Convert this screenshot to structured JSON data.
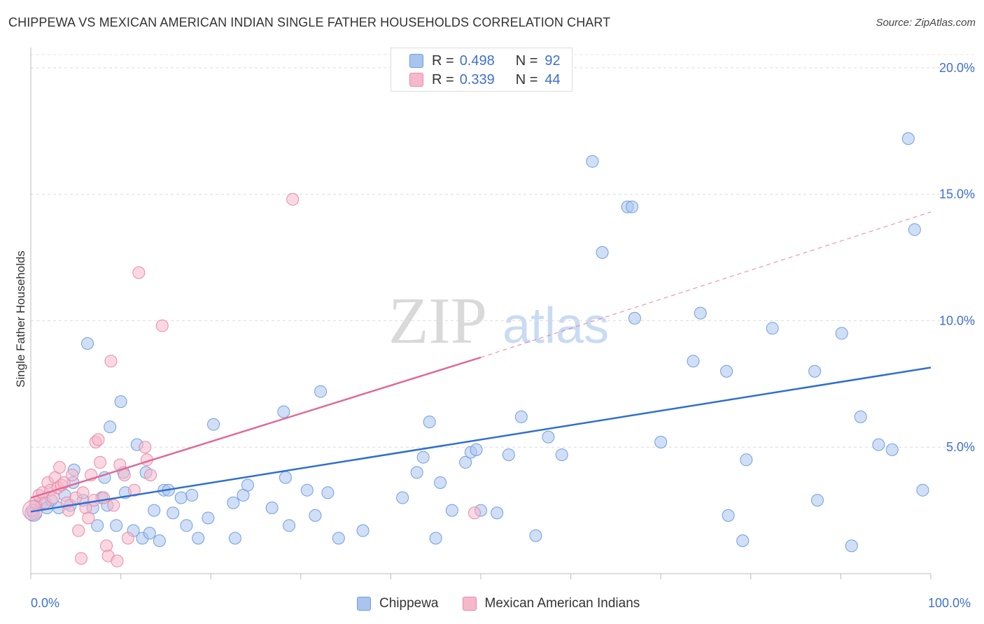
{
  "title": "CHIPPEWA VS MEXICAN AMERICAN INDIAN SINGLE FATHER HOUSEHOLDS CORRELATION CHART",
  "source": "Source: ZipAtlas.com",
  "watermark": {
    "zip": "ZIP",
    "atlas": "atlas"
  },
  "legend_top": [
    {
      "r_label": "R =",
      "r_value": "0.498",
      "n_label": "N =",
      "n_value": "92",
      "color": "#a9c4ef",
      "border": "#6f9ee0"
    },
    {
      "r_label": "R =",
      "r_value": "0.339",
      "n_label": "N =",
      "n_value": "44",
      "color": "#f6b8cb",
      "border": "#e98aa8"
    }
  ],
  "legend_bottom": [
    {
      "label": "Chippewa",
      "color": "#a9c4ef",
      "border": "#6f9ee0"
    },
    {
      "label": "Mexican American Indians",
      "color": "#f6b8cb",
      "border": "#e98aa8"
    }
  ],
  "chart_data": {
    "type": "scatter",
    "title": "CHIPPEWA VS MEXICAN AMERICAN INDIAN SINGLE FATHER HOUSEHOLDS CORRELATION CHART",
    "xlabel": "",
    "ylabel": "Single Father Households",
    "xlim": [
      0,
      100
    ],
    "ylim": [
      0,
      20.8
    ],
    "x_tick_labels": [
      {
        "value": 0,
        "label": "0.0%"
      },
      {
        "value": 100,
        "label": "100.0%"
      }
    ],
    "y_ticks": [
      {
        "value": 5,
        "label": "5.0%"
      },
      {
        "value": 10,
        "label": "10.0%"
      },
      {
        "value": 15,
        "label": "15.0%"
      },
      {
        "value": 20,
        "label": "20.0%"
      }
    ],
    "x_minor_ticks": [
      0,
      10,
      20,
      30,
      40,
      50,
      60,
      70,
      80,
      90,
      100
    ],
    "grid": "horizontal dashed",
    "series": [
      {
        "name": "Chippewa",
        "color": "#a9c4ef",
        "stroke": "#6f9ee0",
        "trend": {
          "x0": 0,
          "y0": 2.45,
          "x1": 100,
          "y1": 8.15,
          "color": "#2f6fd0"
        },
        "points": [
          [
            0.3,
            2.4
          ],
          [
            0.6,
            2.7
          ],
          [
            1.2,
            2.8
          ],
          [
            1.8,
            2.6
          ],
          [
            2.3,
            2.9
          ],
          [
            3.1,
            2.6
          ],
          [
            3.8,
            3.1
          ],
          [
            4.4,
            2.7
          ],
          [
            4.7,
            3.6
          ],
          [
            4.8,
            4.1
          ],
          [
            5.8,
            2.9
          ],
          [
            6.3,
            9.1
          ],
          [
            6.9,
            2.6
          ],
          [
            7.4,
            1.9
          ],
          [
            7.9,
            3.0
          ],
          [
            8.2,
            3.8
          ],
          [
            8.5,
            2.7
          ],
          [
            8.8,
            5.8
          ],
          [
            9.5,
            1.9
          ],
          [
            10.0,
            6.8
          ],
          [
            10.3,
            4.0
          ],
          [
            10.5,
            3.2
          ],
          [
            11.4,
            1.7
          ],
          [
            11.8,
            5.1
          ],
          [
            12.4,
            1.4
          ],
          [
            12.8,
            4.0
          ],
          [
            13.2,
            1.6
          ],
          [
            13.7,
            2.5
          ],
          [
            14.3,
            1.3
          ],
          [
            14.8,
            3.3
          ],
          [
            15.3,
            3.3
          ],
          [
            15.8,
            2.4
          ],
          [
            16.7,
            3.0
          ],
          [
            17.3,
            1.9
          ],
          [
            17.9,
            3.1
          ],
          [
            18.6,
            1.4
          ],
          [
            19.7,
            2.2
          ],
          [
            20.3,
            5.9
          ],
          [
            22.5,
            2.8
          ],
          [
            22.7,
            1.4
          ],
          [
            23.6,
            3.1
          ],
          [
            24.1,
            3.5
          ],
          [
            26.8,
            2.6
          ],
          [
            28.1,
            6.4
          ],
          [
            28.3,
            3.8
          ],
          [
            28.7,
            1.9
          ],
          [
            30.7,
            3.3
          ],
          [
            31.6,
            2.3
          ],
          [
            32.2,
            7.2
          ],
          [
            33.0,
            3.2
          ],
          [
            34.2,
            1.4
          ],
          [
            36.9,
            1.7
          ],
          [
            41.3,
            3.0
          ],
          [
            42.9,
            4.0
          ],
          [
            43.6,
            4.6
          ],
          [
            44.3,
            6.0
          ],
          [
            45.0,
            1.4
          ],
          [
            45.5,
            3.6
          ],
          [
            46.8,
            2.5
          ],
          [
            48.3,
            4.4
          ],
          [
            48.9,
            4.8
          ],
          [
            49.5,
            4.9
          ],
          [
            50.0,
            2.5
          ],
          [
            51.8,
            2.4
          ],
          [
            53.1,
            4.7
          ],
          [
            54.5,
            6.2
          ],
          [
            56.1,
            1.5
          ],
          [
            57.5,
            5.4
          ],
          [
            59.0,
            4.7
          ],
          [
            62.4,
            16.3
          ],
          [
            63.5,
            12.7
          ],
          [
            66.3,
            14.5
          ],
          [
            66.8,
            14.5
          ],
          [
            67.1,
            10.1
          ],
          [
            70.0,
            5.2
          ],
          [
            73.6,
            8.4
          ],
          [
            74.4,
            10.3
          ],
          [
            77.3,
            8.0
          ],
          [
            77.5,
            2.3
          ],
          [
            79.1,
            1.3
          ],
          [
            79.5,
            4.5
          ],
          [
            82.4,
            9.7
          ],
          [
            87.1,
            8.0
          ],
          [
            87.4,
            2.9
          ],
          [
            90.1,
            9.5
          ],
          [
            91.2,
            1.1
          ],
          [
            92.2,
            6.2
          ],
          [
            94.2,
            5.1
          ],
          [
            95.7,
            4.9
          ],
          [
            97.5,
            17.2
          ],
          [
            98.2,
            13.6
          ],
          [
            99.1,
            3.3
          ]
        ]
      },
      {
        "name": "Mexican American Indians",
        "color": "#f6b8cb",
        "stroke": "#e98aa8",
        "trend": {
          "x0": 0,
          "y0": 3.0,
          "x1": 50,
          "y1": 8.55,
          "dash_x1": 100,
          "dash_y1": 14.3,
          "color": "#e06a96"
        },
        "points": [
          [
            0.2,
            2.5
          ],
          [
            0.5,
            2.8
          ],
          [
            0.9,
            3.1
          ],
          [
            1.3,
            3.2
          ],
          [
            1.6,
            2.8
          ],
          [
            1.9,
            3.6
          ],
          [
            2.2,
            3.3
          ],
          [
            2.5,
            3.0
          ],
          [
            2.7,
            3.8
          ],
          [
            3.0,
            3.4
          ],
          [
            3.2,
            4.2
          ],
          [
            3.4,
            3.5
          ],
          [
            3.7,
            3.6
          ],
          [
            4.0,
            2.8
          ],
          [
            4.2,
            2.5
          ],
          [
            4.6,
            3.9
          ],
          [
            5.0,
            3.0
          ],
          [
            5.3,
            1.7
          ],
          [
            5.6,
            0.6
          ],
          [
            5.8,
            3.2
          ],
          [
            6.1,
            2.6
          ],
          [
            6.4,
            2.2
          ],
          [
            6.7,
            3.9
          ],
          [
            7.0,
            2.9
          ],
          [
            7.2,
            5.2
          ],
          [
            7.5,
            5.3
          ],
          [
            7.7,
            4.4
          ],
          [
            8.1,
            3.0
          ],
          [
            8.4,
            1.1
          ],
          [
            8.6,
            0.7
          ],
          [
            8.9,
            8.4
          ],
          [
            9.2,
            2.7
          ],
          [
            9.6,
            0.5
          ],
          [
            9.9,
            4.3
          ],
          [
            10.4,
            3.9
          ],
          [
            10.8,
            1.4
          ],
          [
            11.5,
            3.3
          ],
          [
            12.0,
            11.9
          ],
          [
            12.7,
            5.0
          ],
          [
            12.9,
            4.5
          ],
          [
            13.3,
            3.9
          ],
          [
            14.6,
            9.8
          ],
          [
            29.1,
            14.8
          ],
          [
            49.3,
            2.4
          ]
        ]
      }
    ]
  }
}
